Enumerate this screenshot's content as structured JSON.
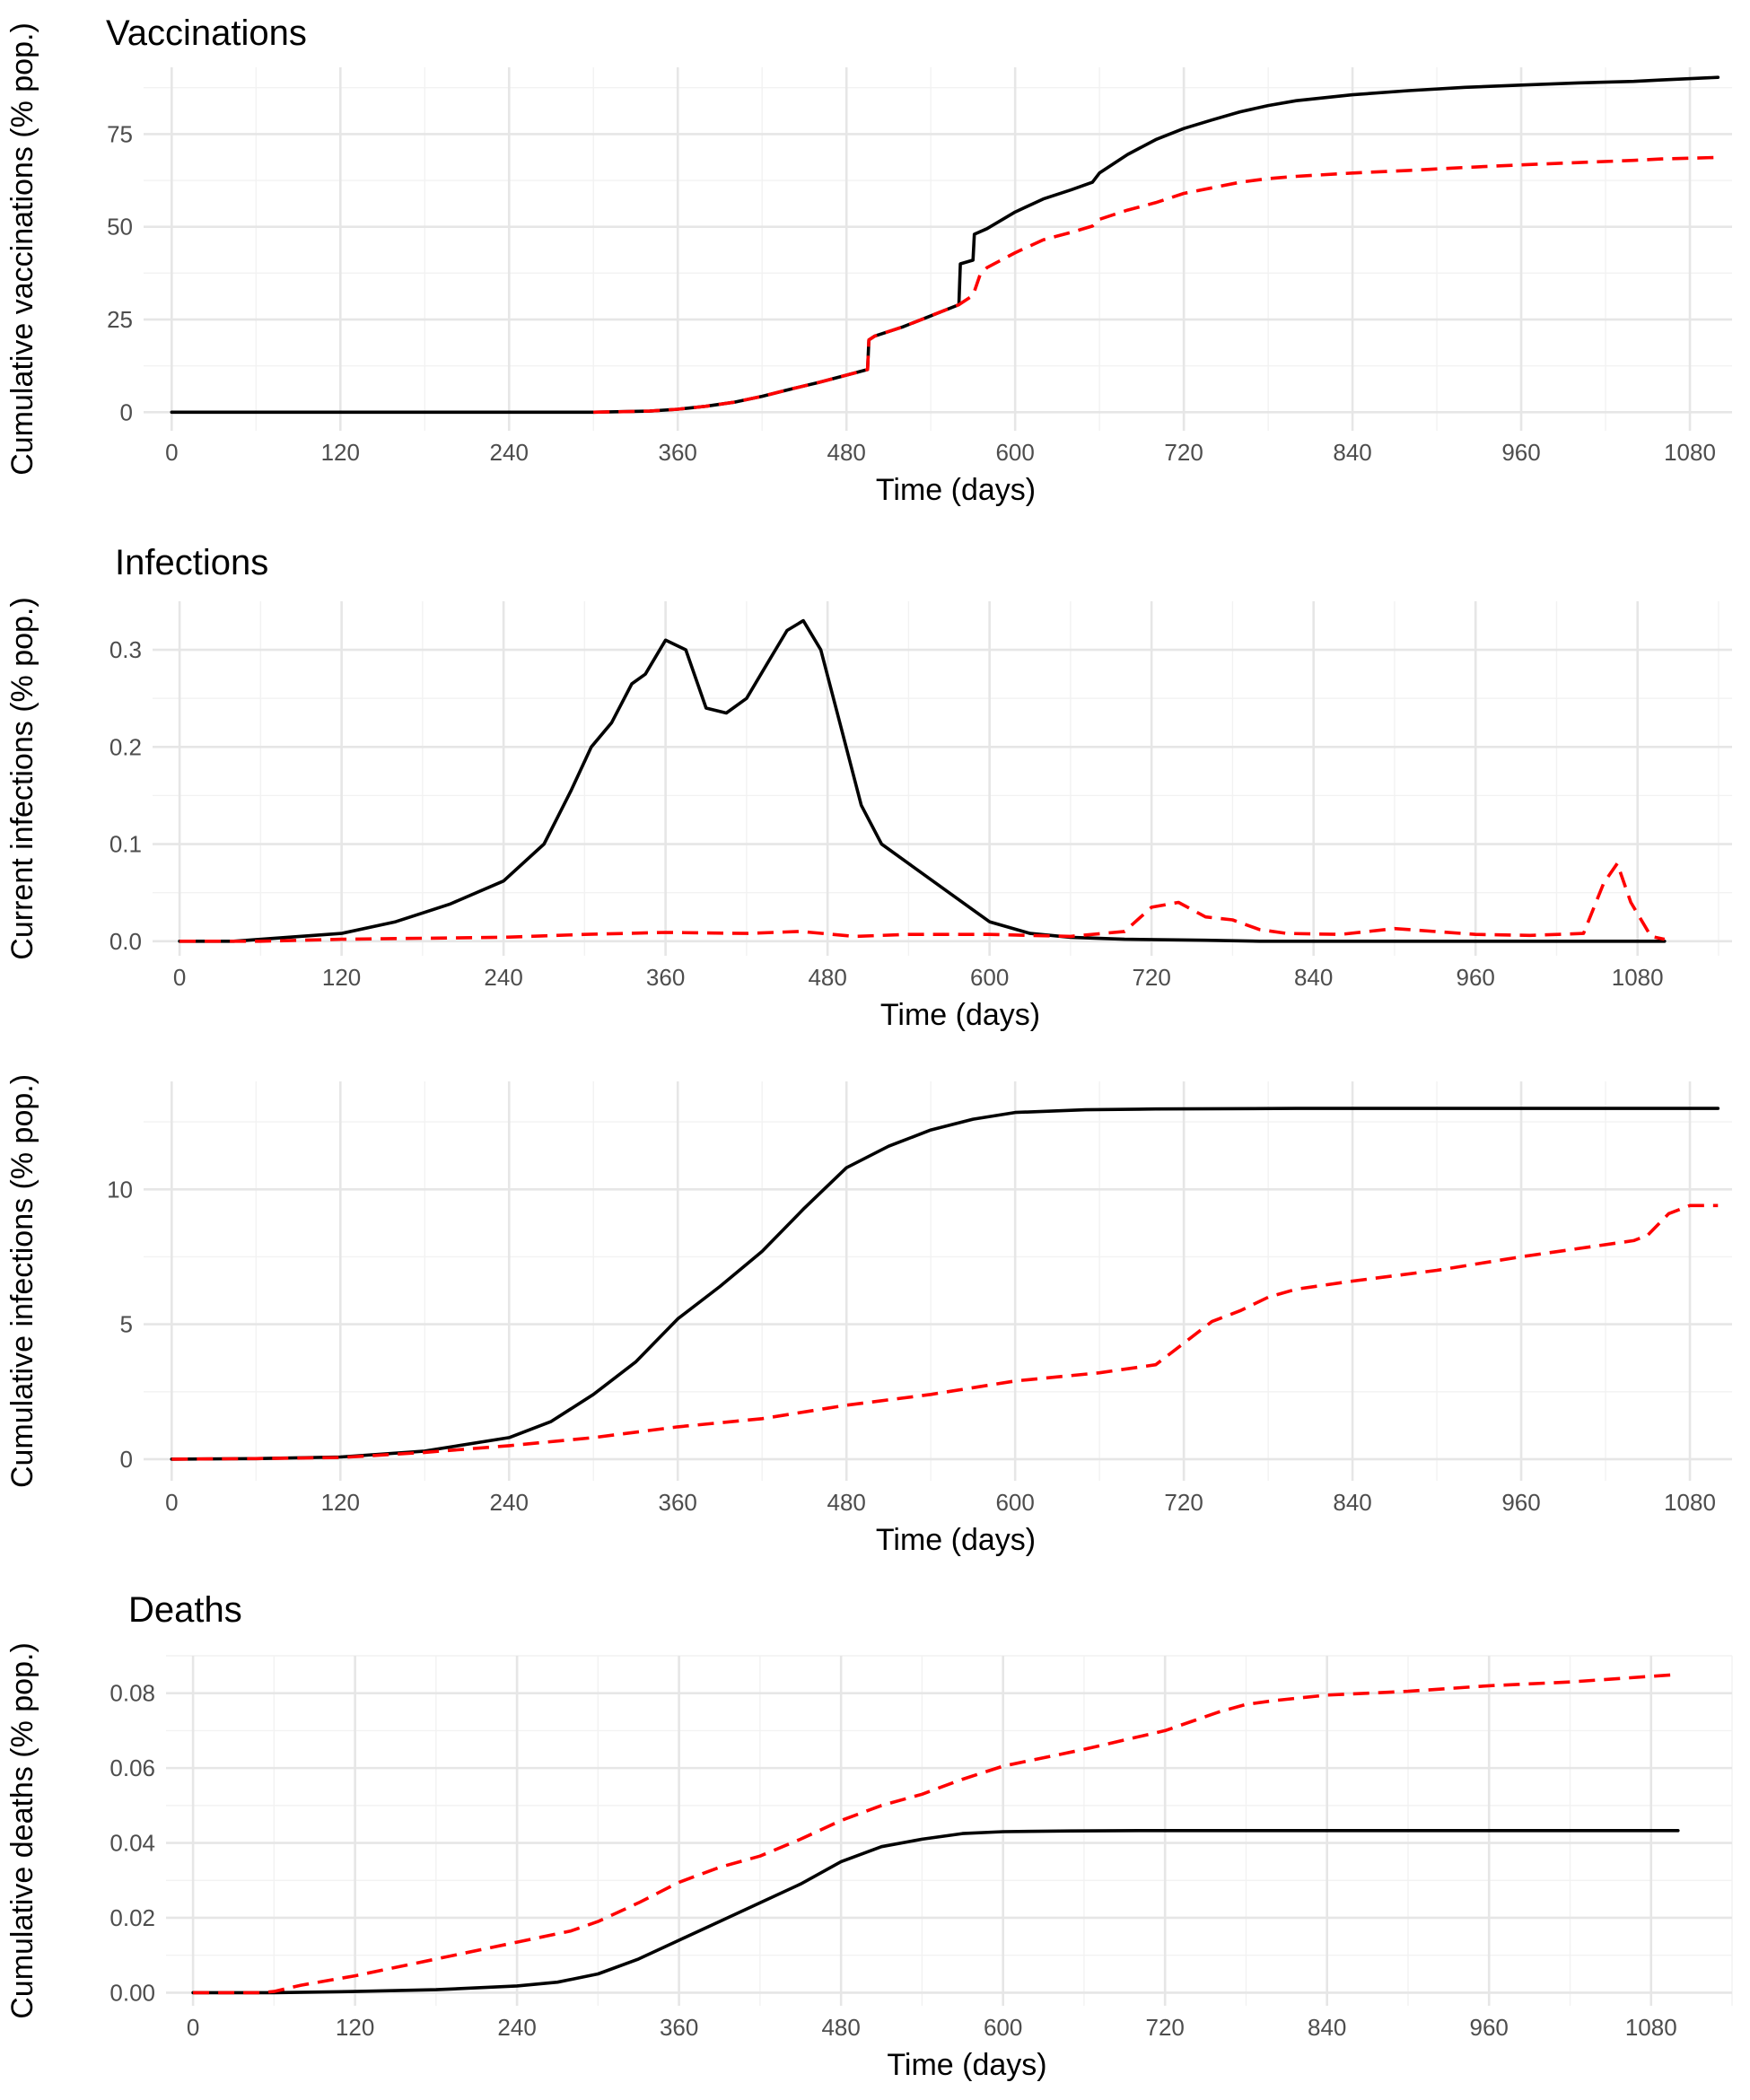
{
  "colors": {
    "series_solid": "#000000",
    "series_dashed": "#ff0000"
  },
  "chart_data": [
    {
      "type": "line",
      "title": "Vaccinations",
      "xlabel": "Time (days)",
      "ylabel": "Cumulative vaccinations (% pop.)",
      "xlim": [
        -20,
        1110
      ],
      "ylim": [
        -5,
        93
      ],
      "x_ticks": [
        0,
        120,
        240,
        360,
        480,
        600,
        720,
        840,
        960,
        1080
      ],
      "y_ticks": [
        0,
        25,
        50,
        75
      ],
      "y_tick_labels": [
        "0",
        "25",
        "50",
        "75"
      ],
      "series": [
        {
          "style": "solid",
          "x": [
            0,
            300,
            340,
            360,
            380,
            400,
            420,
            440,
            460,
            480,
            495,
            496,
            500,
            520,
            540,
            560,
            561,
            570,
            571,
            580,
            600,
            620,
            640,
            655,
            660,
            680,
            700,
            720,
            740,
            760,
            780,
            800,
            840,
            880,
            920,
            960,
            1000,
            1040,
            1060,
            1100
          ],
          "y": [
            0,
            0,
            0.3,
            0.8,
            1.6,
            2.7,
            4.3,
            6.2,
            8,
            10,
            11.5,
            19.5,
            20.5,
            23,
            26,
            29,
            40,
            41,
            48,
            49.5,
            54,
            57.5,
            60,
            62,
            64.5,
            69.5,
            73.5,
            76.5,
            78.8,
            81,
            82.7,
            84,
            85.6,
            86.7,
            87.6,
            88.2,
            88.8,
            89.2,
            89.6,
            90.3
          ]
        },
        {
          "style": "dashed",
          "x": [
            300,
            340,
            360,
            380,
            400,
            420,
            440,
            460,
            480,
            495,
            496,
            500,
            520,
            540,
            560,
            570,
            575,
            580,
            600,
            620,
            640,
            655,
            660,
            680,
            700,
            720,
            740,
            760,
            780,
            800,
            840,
            880,
            920,
            960,
            1000,
            1040,
            1060,
            1100
          ],
          "y": [
            0,
            0.3,
            0.8,
            1.6,
            2.7,
            4.3,
            6.2,
            8,
            10,
            11.5,
            19.5,
            20.5,
            23,
            26,
            29,
            31.5,
            37,
            39,
            43,
            46.5,
            48.5,
            50.2,
            52,
            54.5,
            56.5,
            59,
            60.5,
            62,
            63,
            63.6,
            64.5,
            65.2,
            66,
            66.7,
            67.3,
            67.9,
            68.3,
            68.7
          ]
        }
      ]
    },
    {
      "type": "line",
      "title": "Infections",
      "xlabel": "Time (days)",
      "ylabel": "Current infections (% pop.)",
      "xlim": [
        -20,
        1150
      ],
      "ylim": [
        -0.015,
        0.35
      ],
      "x_ticks": [
        0,
        120,
        240,
        360,
        480,
        600,
        720,
        840,
        960,
        1080
      ],
      "y_ticks": [
        0,
        0.1,
        0.2,
        0.3
      ],
      "y_tick_labels": [
        "0.0",
        "0.1",
        "0.2",
        "0.3"
      ],
      "series": [
        {
          "style": "solid",
          "x": [
            0,
            40,
            80,
            120,
            160,
            200,
            240,
            270,
            290,
            305,
            320,
            335,
            345,
            360,
            375,
            390,
            405,
            420,
            435,
            450,
            462,
            475,
            490,
            505,
            520,
            540,
            570,
            600,
            630,
            660,
            700,
            760,
            800,
            900,
            1000,
            1100
          ],
          "y": [
            0,
            0,
            0.004,
            0.008,
            0.02,
            0.038,
            0.062,
            0.1,
            0.155,
            0.2,
            0.225,
            0.265,
            0.275,
            0.31,
            0.3,
            0.24,
            0.235,
            0.25,
            0.285,
            0.32,
            0.33,
            0.3,
            0.22,
            0.14,
            0.1,
            0.08,
            0.05,
            0.02,
            0.008,
            0.004,
            0.002,
            0.001,
            0,
            0,
            0,
            0
          ]
        },
        {
          "style": "dashed",
          "x": [
            0,
            60,
            120,
            180,
            240,
            300,
            360,
            420,
            460,
            500,
            540,
            600,
            660,
            700,
            720,
            740,
            760,
            780,
            800,
            820,
            860,
            900,
            960,
            1000,
            1040,
            1055,
            1065,
            1075,
            1090,
            1100
          ],
          "y": [
            0,
            0,
            0.002,
            0.003,
            0.004,
            0.007,
            0.009,
            0.008,
            0.01,
            0.005,
            0.007,
            0.007,
            0.005,
            0.01,
            0.035,
            0.04,
            0.025,
            0.022,
            0.012,
            0.008,
            0.007,
            0.013,
            0.007,
            0.006,
            0.008,
            0.06,
            0.08,
            0.04,
            0.005,
            0.002
          ]
        }
      ]
    },
    {
      "type": "line",
      "title": "",
      "xlabel": "Time (days)",
      "ylabel": "Cumulative infections (% pop.)",
      "xlim": [
        -20,
        1110
      ],
      "ylim": [
        -0.8,
        14
      ],
      "x_ticks": [
        0,
        120,
        240,
        360,
        480,
        600,
        720,
        840,
        960,
        1080
      ],
      "y_ticks": [
        0,
        5,
        10
      ],
      "y_tick_labels": [
        "0",
        "5",
        "10"
      ],
      "series": [
        {
          "style": "solid",
          "x": [
            0,
            60,
            120,
            180,
            240,
            270,
            300,
            330,
            360,
            390,
            420,
            450,
            480,
            510,
            540,
            570,
            600,
            650,
            700,
            800,
            900,
            1000,
            1100
          ],
          "y": [
            0,
            0.02,
            0.08,
            0.3,
            0.8,
            1.4,
            2.4,
            3.6,
            5.2,
            6.4,
            7.7,
            9.3,
            10.8,
            11.6,
            12.2,
            12.6,
            12.85,
            12.95,
            12.98,
            13,
            13,
            13,
            13
          ]
        },
        {
          "style": "dashed",
          "x": [
            0,
            60,
            120,
            180,
            240,
            300,
            360,
            420,
            480,
            540,
            600,
            660,
            700,
            720,
            740,
            760,
            780,
            800,
            840,
            900,
            960,
            1000,
            1040,
            1050,
            1065,
            1080,
            1100
          ],
          "y": [
            0,
            0.02,
            0.06,
            0.25,
            0.5,
            0.8,
            1.2,
            1.5,
            2,
            2.4,
            2.9,
            3.2,
            3.5,
            4.3,
            5.1,
            5.5,
            6,
            6.3,
            6.6,
            7.0,
            7.5,
            7.8,
            8.1,
            8.3,
            9.1,
            9.4,
            9.4
          ]
        }
      ]
    },
    {
      "type": "line",
      "title": "Deaths",
      "xlabel": "Time (days)",
      "ylabel": "Cumulative deaths (% pop.)",
      "xlim": [
        -20,
        1140
      ],
      "ylim": [
        -0.0035,
        0.09
      ],
      "x_ticks": [
        0,
        120,
        240,
        360,
        480,
        600,
        720,
        840,
        960,
        1080
      ],
      "y_ticks": [
        0,
        0.02,
        0.04,
        0.06,
        0.08
      ],
      "y_tick_labels": [
        "0.00",
        "0.02",
        "0.04",
        "0.06",
        "0.08"
      ],
      "series": [
        {
          "style": "solid",
          "x": [
            0,
            60,
            120,
            180,
            240,
            270,
            300,
            330,
            360,
            390,
            420,
            450,
            480,
            510,
            540,
            570,
            600,
            650,
            700,
            800,
            900,
            1000,
            1100
          ],
          "y": [
            0,
            0,
            0.0003,
            0.0008,
            0.0018,
            0.0028,
            0.005,
            0.009,
            0.014,
            0.019,
            0.024,
            0.029,
            0.035,
            0.039,
            0.041,
            0.0425,
            0.043,
            0.0432,
            0.0433,
            0.0433,
            0.0433,
            0.0433,
            0.0433
          ]
        },
        {
          "style": "dashed",
          "x": [
            0,
            50,
            60,
            80,
            120,
            180,
            240,
            280,
            300,
            330,
            360,
            390,
            420,
            450,
            480,
            510,
            540,
            570,
            600,
            660,
            720,
            760,
            780,
            800,
            840,
            900,
            960,
            1020,
            1080,
            1100
          ],
          "y": [
            0,
            0,
            0.0003,
            0.002,
            0.0045,
            0.009,
            0.0135,
            0.0165,
            0.019,
            0.024,
            0.0295,
            0.0335,
            0.0365,
            0.041,
            0.046,
            0.05,
            0.053,
            0.057,
            0.0605,
            0.065,
            0.07,
            0.075,
            0.077,
            0.078,
            0.0795,
            0.0805,
            0.082,
            0.083,
            0.0845,
            0.085
          ]
        }
      ]
    }
  ]
}
